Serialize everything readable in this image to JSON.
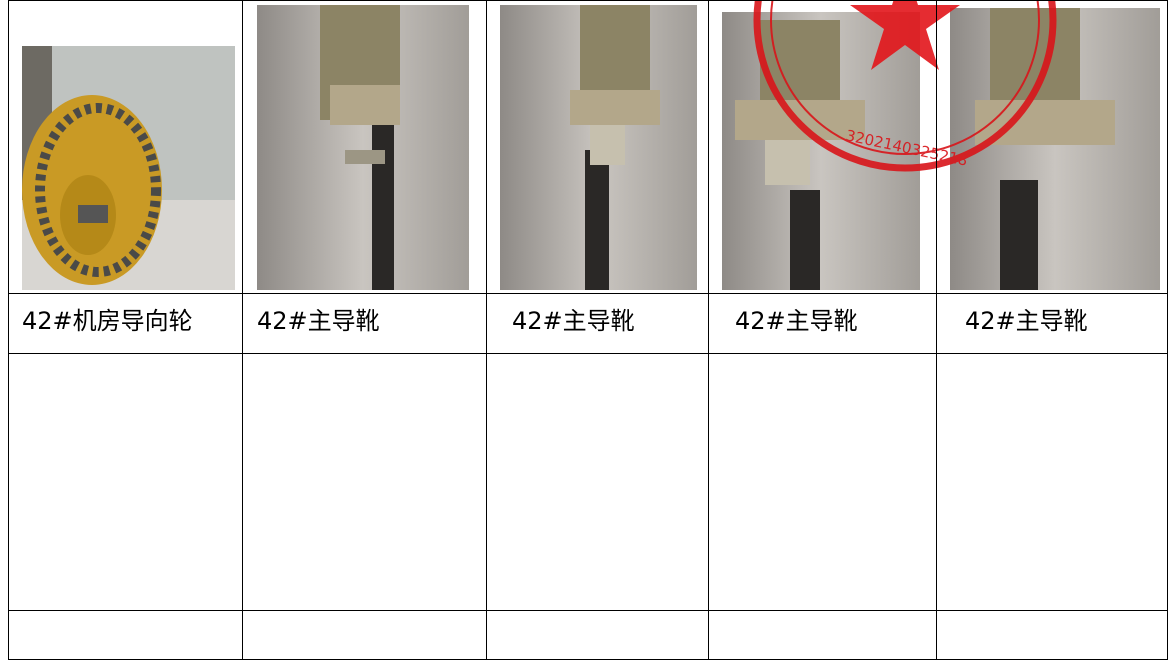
{
  "table": {
    "captions": [
      "42#机房导向轮",
      "42#主导靴",
      "42#主导靴",
      "42#主导靴",
      "42#主导靴"
    ]
  },
  "stamp": {
    "number": "3202140325218"
  }
}
